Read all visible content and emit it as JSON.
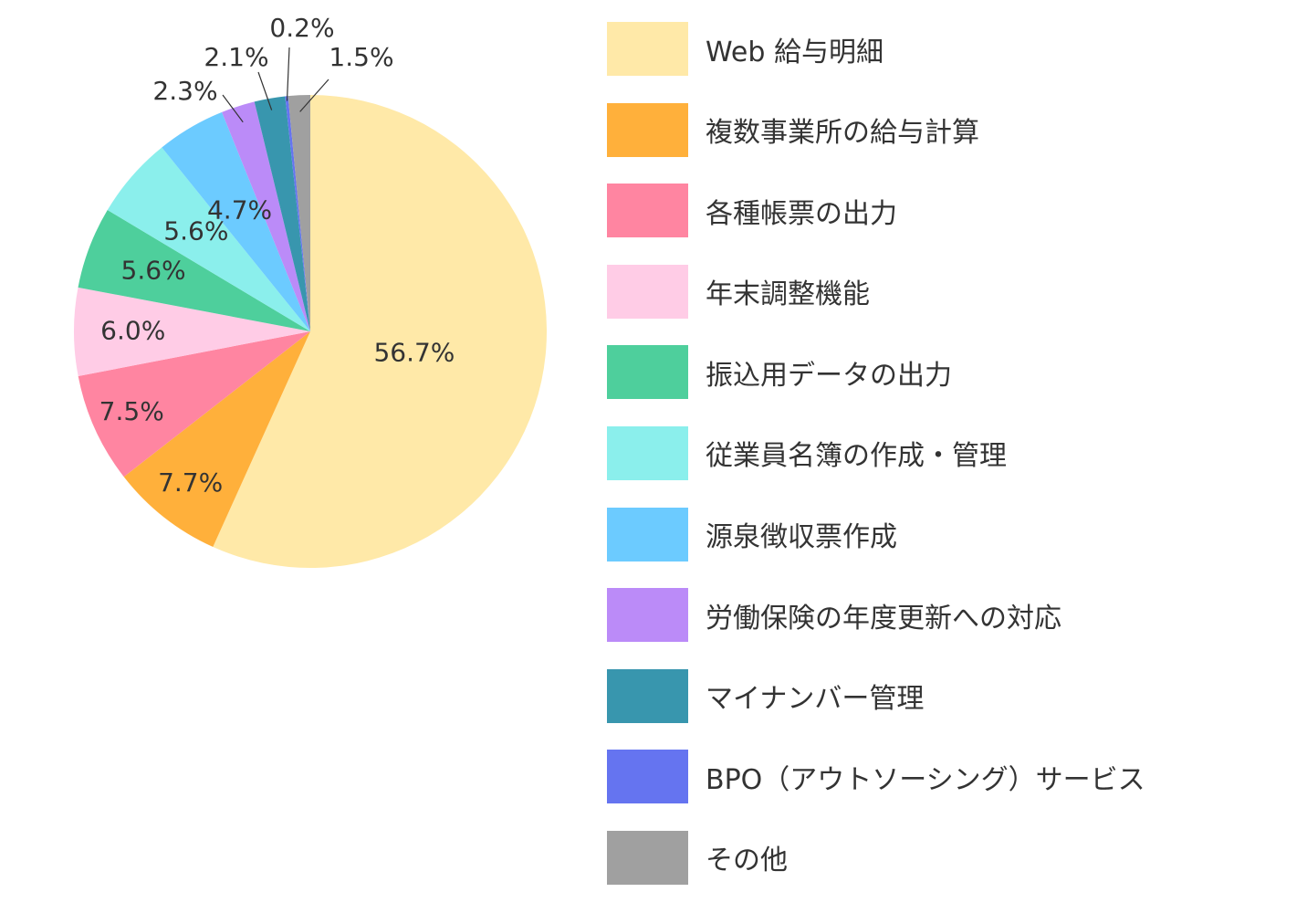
{
  "chart_data": {
    "type": "pie",
    "title": "",
    "start_angle_deg": 0,
    "direction": "clockwise",
    "legend_position": "right",
    "slices": [
      {
        "label": "Web 給与明細",
        "value": 56.7,
        "display": "56.7%",
        "color": "#FFE9A8"
      },
      {
        "label": "複数事業所の給与計算",
        "value": 7.7,
        "display": "7.7%",
        "color": "#FFB03B"
      },
      {
        "label": "各種帳票の出力",
        "value": 7.5,
        "display": "7.5%",
        "color": "#FF85A1"
      },
      {
        "label": "年末調整機能",
        "value": 6.0,
        "display": "6.0%",
        "color": "#FFCCE6"
      },
      {
        "label": "振込用データの出力",
        "value": 5.6,
        "display": "5.6%",
        "color": "#4ECF9C"
      },
      {
        "label": "従業員名簿の作成・管理",
        "value": 5.6,
        "display": "5.6%",
        "color": "#8BEFEC"
      },
      {
        "label": "源泉徴収票作成",
        "value": 4.7,
        "display": "4.7%",
        "color": "#6CCBFF"
      },
      {
        "label": "労働保険の年度更新への対応",
        "value": 2.3,
        "display": "2.3%",
        "color": "#BB8BF8"
      },
      {
        "label": "マイナンバー管理",
        "value": 2.1,
        "display": "2.1%",
        "color": "#3896AE"
      },
      {
        "label": "BPO（アウトソーシング）サービス",
        "value": 0.2,
        "display": "0.2%",
        "color": "#6574F0"
      },
      {
        "label": "その他",
        "value": 1.5,
        "display": "1.5%",
        "color": "#A0A0A0"
      }
    ]
  }
}
